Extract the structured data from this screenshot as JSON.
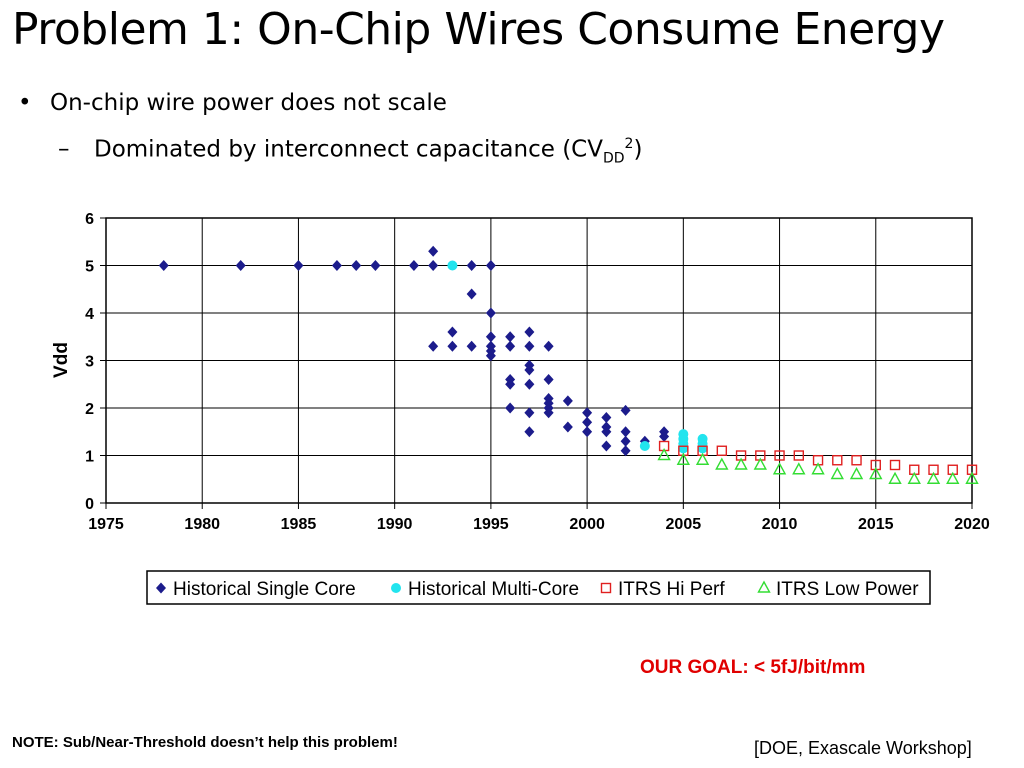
{
  "slide": {
    "title": "Problem 1: On-Chip Wires Consume Energy",
    "bullet_symbol": "•",
    "bullet": "On-chip wire power does not scale",
    "sub_bullet_dash": "–",
    "sub_bullet_prefix": "Dominated by interconnect capacitance (CV",
    "sub_bullet_subscript": "DD",
    "sub_bullet_superscript": "2",
    "sub_bullet_suffix": ")",
    "goal": "OUR GOAL: < 5fJ/bit/mm",
    "note": "NOTE: Sub/Near-Threshold doesn’t help this problem!",
    "source": "[DOE, Exascale Workshop]"
  },
  "colors": {
    "single_core": "#1c1c8c",
    "multi_core": "#22e4ee",
    "itrs_hi_perf": "#e02020",
    "itrs_low_power": "#33dd33",
    "goal": "#e00000"
  },
  "chart_data": {
    "type": "scatter",
    "ylabel": "Vdd",
    "xlabel": "",
    "xlim": [
      1975,
      2020
    ],
    "ylim": [
      0,
      6
    ],
    "xticks": [
      1975,
      1980,
      1985,
      1990,
      1995,
      2000,
      2005,
      2010,
      2015,
      2020
    ],
    "yticks": [
      0,
      1,
      2,
      3,
      4,
      5,
      6
    ],
    "grid": true,
    "legend_position": "bottom",
    "series": [
      {
        "name": "Historical Single Core",
        "marker": "diamond",
        "x": [
          1978,
          1982,
          1985,
          1987,
          1988,
          1989,
          1991,
          1992,
          1992,
          1992,
          1993,
          1993,
          1994,
          1994,
          1994,
          1995,
          1995,
          1995,
          1995,
          1995,
          1995,
          1996,
          1996,
          1996,
          1996,
          1996,
          1997,
          1997,
          1997,
          1997,
          1997,
          1997,
          1997,
          1998,
          1998,
          1998,
          1998,
          1998,
          1998,
          1999,
          1999,
          2000,
          2000,
          2000,
          2001,
          2001,
          2001,
          2001,
          2002,
          2002,
          2002,
          2002,
          2003,
          2004,
          2004,
          2005
        ],
        "y": [
          5.0,
          5.0,
          5.0,
          5.0,
          5.0,
          5.0,
          5.0,
          5.3,
          5.0,
          3.3,
          3.6,
          3.3,
          5.0,
          4.4,
          3.3,
          5.0,
          4.0,
          3.5,
          3.3,
          3.2,
          3.1,
          3.5,
          3.3,
          2.6,
          2.5,
          2.0,
          3.6,
          3.3,
          2.9,
          2.8,
          2.5,
          1.9,
          1.5,
          3.3,
          2.6,
          2.2,
          2.0,
          1.9,
          2.1,
          2.15,
          1.6,
          1.9,
          1.7,
          1.5,
          1.8,
          1.6,
          1.5,
          1.2,
          1.95,
          1.5,
          1.3,
          1.1,
          1.3,
          1.5,
          1.4,
          1.2
        ]
      },
      {
        "name": "Historical Multi-Core",
        "marker": "circle",
        "x": [
          1993,
          2003,
          2005,
          2005,
          2005,
          2005,
          2006,
          2006,
          2006
        ],
        "y": [
          5.0,
          1.2,
          1.45,
          1.35,
          1.25,
          1.15,
          1.35,
          1.25,
          1.15
        ]
      },
      {
        "name": "ITRS Hi Perf",
        "marker": "square-open",
        "x": [
          2004,
          2005,
          2006,
          2007,
          2008,
          2009,
          2010,
          2011,
          2012,
          2013,
          2014,
          2015,
          2016,
          2017,
          2018,
          2019,
          2020
        ],
        "y": [
          1.2,
          1.1,
          1.1,
          1.1,
          1.0,
          1.0,
          1.0,
          1.0,
          0.9,
          0.9,
          0.9,
          0.8,
          0.8,
          0.7,
          0.7,
          0.7,
          0.7
        ]
      },
      {
        "name": "ITRS Low Power",
        "marker": "triangle-open",
        "x": [
          2004,
          2005,
          2006,
          2007,
          2008,
          2009,
          2010,
          2011,
          2012,
          2013,
          2014,
          2015,
          2016,
          2017,
          2018,
          2019,
          2020
        ],
        "y": [
          1.0,
          0.9,
          0.9,
          0.8,
          0.8,
          0.8,
          0.7,
          0.7,
          0.7,
          0.6,
          0.6,
          0.6,
          0.5,
          0.5,
          0.5,
          0.5,
          0.5
        ]
      }
    ]
  }
}
